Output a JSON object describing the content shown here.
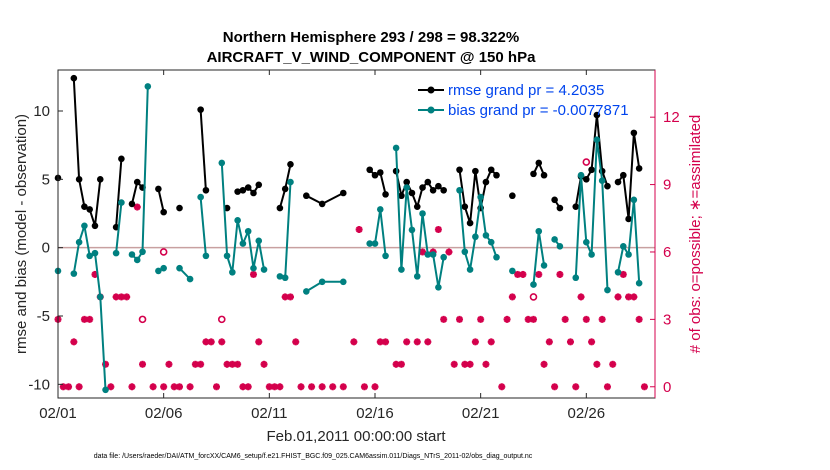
{
  "chart_data": {
    "type": "line",
    "title_line1": "Northern Hemisphere 293 / 298 = 98.322%",
    "title_line2": "AIRCRAFT_V_WIND_COMPONENT @ 150 hPa",
    "xlabel": "Feb.01,2011 00:00:00 start",
    "ylabel_left": "rmse and bias (model - observation)",
    "ylabel_right": "# of obs: o=possible; ∗=assimilated",
    "x_tick_labels": [
      "02/01",
      "02/06",
      "02/11",
      "02/16",
      "02/21",
      "02/26"
    ],
    "x_tick_values": [
      1,
      6,
      11,
      16,
      21,
      26
    ],
    "xlim": [
      1,
      29.25
    ],
    "ylim_left": [
      -11,
      13
    ],
    "yticks_left": [
      -10,
      -5,
      0,
      5,
      10
    ],
    "ylim_right": [
      -0.5,
      14.1
    ],
    "yticks_right": [
      0,
      3,
      6,
      9,
      12
    ],
    "series": [
      {
        "name": "rmse grand pr = 4.2035",
        "color": "#000000",
        "points": [
          [
            1.0,
            5.1
          ],
          [
            1.5,
            null
          ],
          [
            1.75,
            12.4
          ],
          [
            2.0,
            5.0
          ],
          [
            2.25,
            3.0
          ],
          [
            2.5,
            2.8
          ],
          [
            2.75,
            1.6
          ],
          [
            3.0,
            5.0
          ],
          [
            3.5,
            null
          ],
          [
            3.75,
            1.5
          ],
          [
            4.0,
            6.5
          ],
          [
            4.25,
            null
          ],
          [
            4.5,
            3.2
          ],
          [
            4.75,
            4.8
          ],
          [
            5.0,
            4.4
          ],
          [
            5.25,
            null
          ],
          [
            5.75,
            4.3
          ],
          [
            6.0,
            2.6
          ],
          [
            6.5,
            null
          ],
          [
            6.75,
            2.9
          ],
          [
            7.5,
            null
          ],
          [
            7.75,
            10.1
          ],
          [
            8.0,
            4.2
          ],
          [
            8.5,
            null
          ],
          [
            9.0,
            2.9
          ],
          [
            9.25,
            null
          ],
          [
            9.5,
            4.1
          ],
          [
            9.75,
            4.2
          ],
          [
            10.0,
            4.4
          ],
          [
            10.25,
            4.0
          ],
          [
            10.5,
            4.6
          ],
          [
            11.0,
            null
          ],
          [
            11.5,
            2.9
          ],
          [
            11.75,
            4.3
          ],
          [
            12.0,
            6.1
          ],
          [
            12.25,
            null
          ],
          [
            12.75,
            3.8
          ],
          [
            13.5,
            3.2
          ],
          [
            14.5,
            4.0
          ],
          [
            15.5,
            null
          ],
          [
            15.75,
            5.7
          ],
          [
            16.0,
            5.3
          ],
          [
            16.25,
            5.5
          ],
          [
            16.5,
            3.9
          ],
          [
            16.75,
            null
          ],
          [
            17.0,
            5.6
          ],
          [
            17.25,
            3.8
          ],
          [
            17.5,
            4.8
          ],
          [
            17.75,
            4.0
          ],
          [
            18.0,
            3.0
          ],
          [
            18.25,
            4.4
          ],
          [
            18.5,
            4.8
          ],
          [
            18.75,
            4.2
          ],
          [
            19.0,
            4.5
          ],
          [
            19.25,
            4.2
          ],
          [
            19.5,
            null
          ],
          [
            20.0,
            5.7
          ],
          [
            20.25,
            3.0
          ],
          [
            20.5,
            1.8
          ],
          [
            20.75,
            5.6
          ],
          [
            21.0,
            2.9
          ],
          [
            21.25,
            4.8
          ],
          [
            21.5,
            5.7
          ],
          [
            21.75,
            5.3
          ],
          [
            22.0,
            null
          ],
          [
            22.5,
            3.8
          ],
          [
            22.75,
            null
          ],
          [
            23.5,
            5.4
          ],
          [
            23.75,
            6.2
          ],
          [
            24.0,
            5.3
          ],
          [
            24.25,
            null
          ],
          [
            24.5,
            3.5
          ],
          [
            24.75,
            2.9
          ],
          [
            25.0,
            null
          ],
          [
            25.5,
            3.0
          ],
          [
            25.75,
            5.2
          ],
          [
            26.0,
            5.0
          ],
          [
            26.25,
            5.7
          ],
          [
            26.5,
            9.7
          ],
          [
            26.75,
            5.6
          ],
          [
            27.0,
            4.5
          ],
          [
            27.25,
            null
          ],
          [
            27.5,
            4.8
          ],
          [
            27.75,
            5.3
          ],
          [
            28.0,
            2.1
          ],
          [
            28.25,
            8.4
          ],
          [
            28.5,
            5.8
          ]
        ]
      },
      {
        "name": "bias grand pr = -0.0077871",
        "color": "#008080",
        "points": [
          [
            1.0,
            -1.7
          ],
          [
            1.5,
            null
          ],
          [
            1.75,
            -1.9
          ],
          [
            2.0,
            0.4
          ],
          [
            2.25,
            1.6
          ],
          [
            2.5,
            -0.6
          ],
          [
            2.75,
            -0.4
          ],
          [
            3.0,
            -3.6
          ],
          [
            3.25,
            -10.4
          ],
          [
            3.5,
            null
          ],
          [
            3.75,
            -0.4
          ],
          [
            4.0,
            3.3
          ],
          [
            4.25,
            null
          ],
          [
            4.5,
            -0.5
          ],
          [
            4.75,
            -0.9
          ],
          [
            5.0,
            -0.3
          ],
          [
            5.25,
            11.8
          ],
          [
            5.5,
            null
          ],
          [
            5.75,
            -1.7
          ],
          [
            6.0,
            -1.5
          ],
          [
            6.5,
            null
          ],
          [
            6.75,
            -1.5
          ],
          [
            7.25,
            -2.3
          ],
          [
            7.5,
            null
          ],
          [
            7.75,
            3.7
          ],
          [
            8.0,
            -0.6
          ],
          [
            8.5,
            null
          ],
          [
            8.75,
            6.2
          ],
          [
            9.0,
            -0.6
          ],
          [
            9.25,
            -1.8
          ],
          [
            9.5,
            2.0
          ],
          [
            9.75,
            0.3
          ],
          [
            10.0,
            1.2
          ],
          [
            10.25,
            -1.5
          ],
          [
            10.5,
            0.5
          ],
          [
            10.75,
            -1.6
          ],
          [
            11.0,
            null
          ],
          [
            11.5,
            -2.1
          ],
          [
            11.75,
            -2.2
          ],
          [
            12.0,
            4.8
          ],
          [
            12.25,
            null
          ],
          [
            12.75,
            -3.2
          ],
          [
            13.5,
            -2.5
          ],
          [
            14.5,
            -2.5
          ],
          [
            15.5,
            null
          ],
          [
            15.75,
            0.3
          ],
          [
            16.0,
            0.3
          ],
          [
            16.25,
            2.8
          ],
          [
            16.5,
            -0.6
          ],
          [
            16.75,
            null
          ],
          [
            17.0,
            7.3
          ],
          [
            17.25,
            -1.6
          ],
          [
            17.5,
            4.4
          ],
          [
            17.75,
            1.3
          ],
          [
            18.0,
            -2.1
          ],
          [
            18.25,
            2.5
          ],
          [
            18.5,
            -0.5
          ],
          [
            18.75,
            -0.5
          ],
          [
            19.0,
            -2.9
          ],
          [
            19.25,
            -0.7
          ],
          [
            19.5,
            null
          ],
          [
            20.0,
            4.2
          ],
          [
            20.25,
            -0.3
          ],
          [
            20.5,
            -1.6
          ],
          [
            20.75,
            0.8
          ],
          [
            21.0,
            3.7
          ],
          [
            21.25,
            0.9
          ],
          [
            21.5,
            0.4
          ],
          [
            21.75,
            -0.7
          ],
          [
            22.0,
            null
          ],
          [
            22.5,
            -1.7
          ],
          [
            22.75,
            null
          ],
          [
            23.5,
            -2.7
          ],
          [
            23.75,
            1.2
          ],
          [
            24.0,
            -1.3
          ],
          [
            24.25,
            null
          ],
          [
            24.5,
            0.6
          ],
          [
            24.75,
            0.1
          ],
          [
            25.0,
            null
          ],
          [
            25.5,
            -2.2
          ],
          [
            25.75,
            5.3
          ],
          [
            26.0,
            0.4
          ],
          [
            26.25,
            -0.5
          ],
          [
            26.5,
            7.9
          ],
          [
            26.75,
            4.9
          ],
          [
            27.0,
            -3.1
          ],
          [
            27.25,
            null
          ],
          [
            27.5,
            -1.8
          ],
          [
            27.75,
            0.1
          ],
          [
            28.0,
            -0.5
          ],
          [
            28.25,
            3.5
          ],
          [
            28.5,
            -2.6
          ]
        ]
      }
    ],
    "obs_assimilated": [
      [
        1.0,
        3
      ],
      [
        1.25,
        0
      ],
      [
        1.5,
        0
      ],
      [
        1.75,
        2
      ],
      [
        2.0,
        0
      ],
      [
        2.25,
        3
      ],
      [
        2.5,
        3
      ],
      [
        2.75,
        5
      ],
      [
        3.0,
        4
      ],
      [
        3.25,
        1
      ],
      [
        3.5,
        0
      ],
      [
        3.75,
        4
      ],
      [
        4.0,
        4
      ],
      [
        4.25,
        4
      ],
      [
        4.5,
        0
      ],
      [
        4.75,
        8
      ],
      [
        5.0,
        1
      ],
      [
        5.5,
        0
      ],
      [
        6.0,
        0
      ],
      [
        6.25,
        1
      ],
      [
        6.5,
        0
      ],
      [
        6.75,
        0
      ],
      [
        7.25,
        0
      ],
      [
        7.5,
        1
      ],
      [
        7.75,
        1
      ],
      [
        8.0,
        2
      ],
      [
        8.25,
        2
      ],
      [
        8.5,
        0
      ],
      [
        8.75,
        2
      ],
      [
        9.0,
        1
      ],
      [
        9.25,
        1
      ],
      [
        9.5,
        1
      ],
      [
        9.75,
        0
      ],
      [
        10.0,
        0
      ],
      [
        10.25,
        5
      ],
      [
        10.5,
        2
      ],
      [
        10.75,
        1
      ],
      [
        11.0,
        0
      ],
      [
        11.25,
        0
      ],
      [
        11.5,
        0
      ],
      [
        11.75,
        4
      ],
      [
        12.0,
        4
      ],
      [
        12.25,
        2
      ],
      [
        12.5,
        0
      ],
      [
        13.0,
        0
      ],
      [
        13.5,
        0
      ],
      [
        14.0,
        0
      ],
      [
        14.5,
        0
      ],
      [
        15.0,
        2
      ],
      [
        15.25,
        7
      ],
      [
        15.5,
        0
      ],
      [
        16.0,
        0
      ],
      [
        16.25,
        2
      ],
      [
        16.5,
        2
      ],
      [
        17.0,
        1
      ],
      [
        17.25,
        1
      ],
      [
        17.5,
        2
      ],
      [
        18.0,
        2
      ],
      [
        18.25,
        6
      ],
      [
        18.5,
        2
      ],
      [
        18.75,
        6
      ],
      [
        19.0,
        7
      ],
      [
        19.25,
        3
      ],
      [
        19.5,
        6
      ],
      [
        19.75,
        1
      ],
      [
        20.0,
        3
      ],
      [
        20.25,
        1
      ],
      [
        20.5,
        1
      ],
      [
        20.75,
        2
      ],
      [
        21.0,
        3
      ],
      [
        21.25,
        1
      ],
      [
        21.5,
        2
      ],
      [
        22.0,
        0
      ],
      [
        22.25,
        3
      ],
      [
        22.5,
        4
      ],
      [
        22.75,
        5
      ],
      [
        23.0,
        5
      ],
      [
        23.25,
        3
      ],
      [
        23.5,
        3
      ],
      [
        23.75,
        5
      ],
      [
        24.0,
        1
      ],
      [
        24.25,
        2
      ],
      [
        24.5,
        0
      ],
      [
        24.75,
        5
      ],
      [
        25.0,
        3
      ],
      [
        25.25,
        2
      ],
      [
        25.5,
        0
      ],
      [
        25.75,
        4
      ],
      [
        26.0,
        3
      ],
      [
        26.25,
        2
      ],
      [
        26.5,
        1
      ],
      [
        26.75,
        3
      ],
      [
        27.0,
        0
      ],
      [
        27.25,
        1
      ],
      [
        27.5,
        4
      ],
      [
        27.75,
        5
      ],
      [
        28.0,
        4
      ],
      [
        28.25,
        4
      ],
      [
        28.5,
        3
      ],
      [
        28.75,
        0
      ]
    ],
    "obs_possible": [
      [
        5.0,
        3
      ],
      [
        6.0,
        6
      ],
      [
        8.75,
        3
      ],
      [
        23.5,
        4
      ],
      [
        26.0,
        10
      ]
    ]
  },
  "footer": "data file: /Users/raeder/DAI/ATM_forcXX/CAM6_setup/f.e21.FHIST_BGC.f09_025.CAM6assim.011/Diags_NTrS_2011-02/obs_diag_output.nc",
  "colors": {
    "rmse": "#000000",
    "bias": "#008080",
    "obs": "#d4004c",
    "legend_text": "#0044ee",
    "zero_line": "#c8a0a0"
  }
}
